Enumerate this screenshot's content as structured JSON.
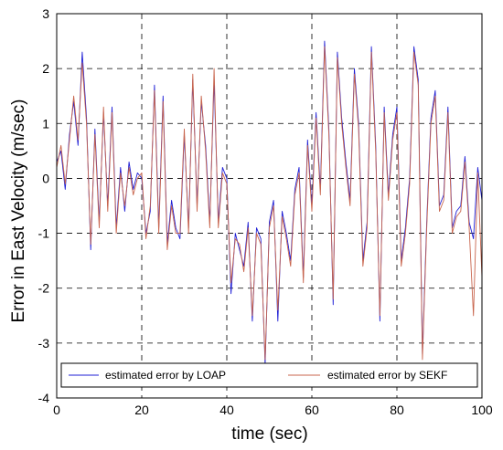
{
  "chart_data": {
    "type": "line",
    "xlabel": "time (sec)",
    "ylabel": "Error in East Velocity  (m/sec)",
    "xlim": [
      0,
      100
    ],
    "ylim": [
      -4,
      3
    ],
    "xticks": [
      "0",
      "20",
      "40",
      "60",
      "80",
      "100"
    ],
    "yticks": [
      "-4",
      "-3",
      "-2",
      "-1",
      "0",
      "1",
      "2",
      "3"
    ],
    "grid": "dashed",
    "legend_position": "bottom",
    "series": [
      {
        "name": "estimated error by  LOAP",
        "color": "#1f1fd6",
        "x": [
          0,
          1,
          2,
          3,
          4,
          5,
          6,
          7,
          8,
          9,
          10,
          11,
          12,
          13,
          14,
          15,
          16,
          17,
          18,
          19,
          20,
          21,
          22,
          23,
          24,
          25,
          26,
          27,
          28,
          29,
          30,
          31,
          32,
          33,
          34,
          35,
          36,
          37,
          38,
          39,
          40,
          41,
          42,
          43,
          44,
          45,
          46,
          47,
          48,
          49,
          50,
          51,
          52,
          53,
          54,
          55,
          56,
          57,
          58,
          59,
          60,
          61,
          62,
          63,
          64,
          65,
          66,
          67,
          68,
          69,
          70,
          71,
          72,
          73,
          74,
          75,
          76,
          77,
          78,
          79,
          80,
          81,
          82,
          83,
          84,
          85,
          86,
          87,
          88,
          89,
          90,
          91,
          92,
          93,
          94,
          95,
          96,
          97,
          98,
          99,
          100
        ],
        "values": [
          0.3,
          0.5,
          -0.2,
          0.8,
          1.4,
          0.6,
          2.3,
          1.1,
          -1.3,
          0.9,
          -0.8,
          1.2,
          -0.5,
          1.3,
          -0.9,
          0.2,
          -0.6,
          0.3,
          -0.2,
          0.1,
          0.0,
          -1.0,
          -0.6,
          1.7,
          -0.9,
          1.5,
          -1.2,
          -0.4,
          -0.9,
          -1.1,
          0.8,
          -0.9,
          1.8,
          -0.5,
          1.4,
          0.6,
          -0.8,
          1.8,
          -0.8,
          0.2,
          0.0,
          -2.1,
          -1.0,
          -1.3,
          -1.6,
          -0.8,
          -2.6,
          -0.9,
          -1.1,
          -3.4,
          -0.8,
          -0.4,
          -2.6,
          -0.6,
          -1.0,
          -1.5,
          -0.2,
          0.2,
          -1.8,
          0.7,
          -0.5,
          1.2,
          -0.2,
          2.5,
          0.9,
          -2.3,
          2.3,
          1.1,
          0.3,
          -0.4,
          2.0,
          1.0,
          -1.5,
          -0.8,
          2.4,
          0.6,
          -2.6,
          1.3,
          -0.3,
          0.8,
          1.3,
          -1.5,
          -0.9,
          0.0,
          2.4,
          1.8,
          -3.2,
          -0.8,
          1.1,
          1.6,
          -0.5,
          -0.3,
          1.3,
          -0.9,
          -0.6,
          -0.5,
          0.4,
          -0.8,
          -1.1,
          0.2,
          -0.4
        ]
      },
      {
        "name": "estimated error by  SEKF",
        "color": "#c8654d",
        "x": [
          0,
          1,
          2,
          3,
          4,
          5,
          6,
          7,
          8,
          9,
          10,
          11,
          12,
          13,
          14,
          15,
          16,
          17,
          18,
          19,
          20,
          21,
          22,
          23,
          24,
          25,
          26,
          27,
          28,
          29,
          30,
          31,
          32,
          33,
          34,
          35,
          36,
          37,
          38,
          39,
          40,
          41,
          42,
          43,
          44,
          45,
          46,
          47,
          48,
          49,
          50,
          51,
          52,
          53,
          54,
          55,
          56,
          57,
          58,
          59,
          60,
          61,
          62,
          63,
          64,
          65,
          66,
          67,
          68,
          69,
          70,
          71,
          72,
          73,
          74,
          75,
          76,
          77,
          78,
          79,
          80,
          81,
          82,
          83,
          84,
          85,
          86,
          87,
          88,
          89,
          90,
          91,
          92,
          93,
          94,
          95,
          96,
          97,
          98,
          99,
          100
        ],
        "values": [
          0.2,
          0.6,
          -0.1,
          0.7,
          1.5,
          0.7,
          2.1,
          1.0,
          -1.2,
          0.8,
          -0.9,
          1.3,
          -0.6,
          1.2,
          -1.0,
          0.1,
          -0.5,
          0.2,
          -0.3,
          0.0,
          0.1,
          -1.1,
          -0.5,
          1.6,
          -1.0,
          1.4,
          -1.3,
          -0.5,
          -1.0,
          -1.0,
          0.9,
          -1.0,
          1.9,
          -0.6,
          1.5,
          0.5,
          -0.9,
          2.0,
          -0.9,
          0.1,
          -0.1,
          -1.9,
          -1.1,
          -1.2,
          -1.7,
          -0.9,
          -2.5,
          -1.0,
          -1.2,
          -3.3,
          -0.9,
          -0.5,
          -2.4,
          -0.7,
          -1.1,
          -1.6,
          -0.3,
          0.1,
          -1.9,
          0.6,
          -0.6,
          1.1,
          -0.3,
          2.4,
          0.8,
          -2.2,
          2.2,
          1.0,
          0.2,
          -0.5,
          1.9,
          0.9,
          -1.6,
          -0.9,
          2.3,
          0.5,
          -2.5,
          1.2,
          -0.4,
          0.7,
          1.2,
          -1.6,
          -1.0,
          -0.1,
          2.3,
          1.7,
          -3.3,
          -0.9,
          1.0,
          1.5,
          -0.6,
          -0.4,
          1.2,
          -1.0,
          -0.7,
          -0.6,
          0.3,
          -0.9,
          -2.5,
          0.1,
          -1.8
        ]
      }
    ]
  }
}
